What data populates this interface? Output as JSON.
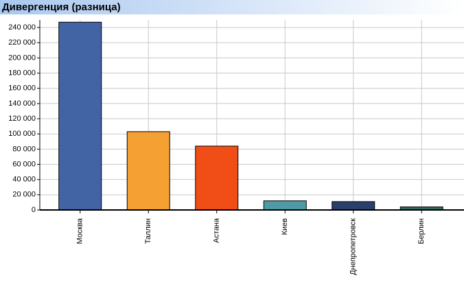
{
  "chart_data": {
    "type": "bar",
    "title": "Дивергенция (разница)",
    "categories": [
      "Москва",
      "Таллин",
      "Астана",
      "Киев",
      "Днепропетровск",
      "Берлин"
    ],
    "values": [
      247000,
      103000,
      84000,
      12000,
      11000,
      4000
    ],
    "colors": [
      "#4264a4",
      "#f4a033",
      "#f04e16",
      "#4f9aa6",
      "#2c3e6c",
      "#2e6b5e"
    ],
    "ylim": [
      0,
      250000
    ],
    "yticks": [
      0,
      {
        "value": 20000,
        "label": "20 000"
      },
      {
        "value": 40000,
        "label": "40 000"
      },
      {
        "value": 60000,
        "label": "60 000"
      },
      {
        "value": 80000,
        "label": "80 000"
      },
      {
        "value": 100000,
        "label": "100 000"
      },
      {
        "value": 120000,
        "label": "120 000"
      },
      {
        "value": 140000,
        "label": "140 000"
      },
      {
        "value": 160000,
        "label": "160 000"
      },
      {
        "value": 180000,
        "label": "180 000"
      },
      {
        "value": 200000,
        "label": "200 000"
      },
      {
        "value": 220000,
        "label": "220 000"
      },
      {
        "value": 240000,
        "label": "240 000"
      }
    ],
    "grid": true
  }
}
